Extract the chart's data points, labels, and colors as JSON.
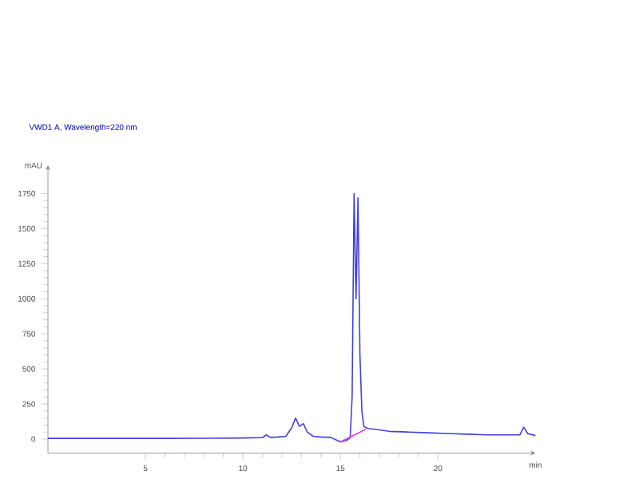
{
  "chart_data": {
    "type": "line",
    "title": "VWD1 A, Wavelength=220 nm",
    "ylabel": "mAU",
    "xlabel": "min",
    "xlim": [
      0,
      25
    ],
    "xticks": [
      5,
      10,
      15,
      20
    ],
    "ylim": [
      -100,
      1950
    ],
    "yticks": [
      0,
      250,
      500,
      750,
      1000,
      1250,
      1500,
      1750
    ],
    "grid": false,
    "marker": "none",
    "series": [
      {
        "color": "#4040e0",
        "x": [
          0,
          2,
          4,
          6,
          8,
          10,
          10.8,
          11.0,
          11.2,
          11.4,
          11.8,
          12.2,
          12.5,
          12.7,
          12.9,
          13.1,
          13.3,
          13.6,
          14,
          14.5,
          15.0,
          15.3,
          15.5,
          15.6,
          15.7,
          15.8,
          15.9,
          16.0,
          16.1,
          16.2,
          16.4,
          16.8,
          17.5,
          18.5,
          19.5,
          20.5,
          21.5,
          22.5,
          23.5,
          24.2,
          24.4,
          24.6,
          25
        ],
        "values": [
          5,
          5,
          5,
          5,
          6,
          8,
          10,
          10,
          30,
          12,
          15,
          20,
          80,
          150,
          90,
          110,
          50,
          20,
          15,
          12,
          -20,
          -10,
          10,
          300,
          1750,
          1000,
          1720,
          600,
          200,
          90,
          75,
          70,
          55,
          50,
          45,
          40,
          35,
          30,
          30,
          30,
          85,
          40,
          25
        ]
      },
      {
        "color": "#e040e0",
        "x": [
          15.0,
          16.3
        ],
        "values": [
          -20,
          70
        ]
      }
    ]
  }
}
